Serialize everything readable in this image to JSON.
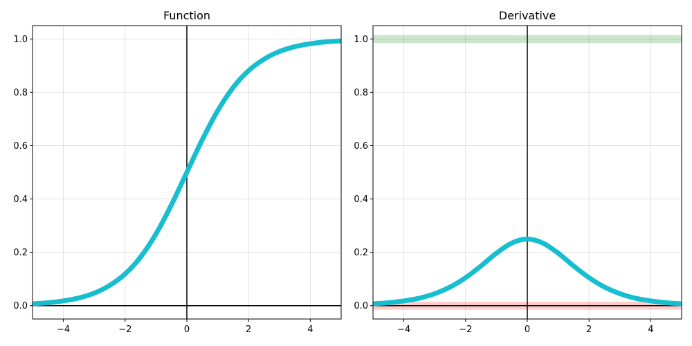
{
  "chart_data": [
    {
      "type": "line",
      "title": "Function",
      "xlabel": "",
      "ylabel": "",
      "xlim": [
        -5,
        5
      ],
      "ylim": [
        -0.05,
        1.05
      ],
      "xticks": [
        -4,
        -2,
        0,
        2,
        4
      ],
      "xtick_labels": [
        "−4",
        "−2",
        "0",
        "2",
        "4"
      ],
      "yticks": [
        0.0,
        0.2,
        0.4,
        0.6,
        0.8,
        1.0
      ],
      "ytick_labels": [
        "0.0",
        "0.2",
        "0.4",
        "0.6",
        "0.8",
        "1.0"
      ],
      "grid": true,
      "reference_lines": {
        "x": 0,
        "y": 0
      },
      "bands": [],
      "series": [
        {
          "color": "#17becf",
          "x": [
            -5,
            -4.5,
            -4,
            -3.5,
            -3,
            -2.5,
            -2,
            -1.5,
            -1,
            -0.5,
            0,
            0.5,
            1,
            1.5,
            2,
            2.5,
            3,
            3.5,
            4,
            4.5,
            5
          ],
          "y": [
            0.007,
            0.011,
            0.018,
            0.029,
            0.047,
            0.076,
            0.119,
            0.182,
            0.269,
            0.378,
            0.5,
            0.622,
            0.731,
            0.818,
            0.881,
            0.924,
            0.953,
            0.971,
            0.982,
            0.989,
            0.993
          ]
        }
      ]
    },
    {
      "type": "line",
      "title": "Derivative",
      "xlabel": "",
      "ylabel": "",
      "xlim": [
        -5,
        5
      ],
      "ylim": [
        -0.05,
        1.05
      ],
      "xticks": [
        -4,
        -2,
        0,
        2,
        4
      ],
      "xtick_labels": [
        "−4",
        "−2",
        "0",
        "2",
        "4"
      ],
      "yticks": [
        0.0,
        0.2,
        0.4,
        0.6,
        0.8,
        1.0
      ],
      "ytick_labels": [
        "0.0",
        "0.2",
        "0.4",
        "0.6",
        "0.8",
        "1.0"
      ],
      "grid": true,
      "reference_lines": {
        "x": 0,
        "y": 0
      },
      "bands": [
        {
          "y_from": -0.015,
          "y_to": 0.015,
          "color": "#ff0000",
          "opacity": 0.2
        },
        {
          "y_from": 0.985,
          "y_to": 1.015,
          "color": "#008000",
          "opacity": 0.2
        }
      ],
      "series": [
        {
          "color": "#17becf",
          "x": [
            -5,
            -4.5,
            -4,
            -3.5,
            -3,
            -2.5,
            -2,
            -1.5,
            -1,
            -0.5,
            0,
            0.5,
            1,
            1.5,
            2,
            2.5,
            3,
            3.5,
            4,
            4.5,
            5
          ],
          "y": [
            0.007,
            0.011,
            0.018,
            0.028,
            0.045,
            0.07,
            0.105,
            0.149,
            0.197,
            0.235,
            0.25,
            0.235,
            0.197,
            0.149,
            0.105,
            0.07,
            0.045,
            0.028,
            0.018,
            0.011,
            0.007
          ]
        }
      ]
    }
  ]
}
